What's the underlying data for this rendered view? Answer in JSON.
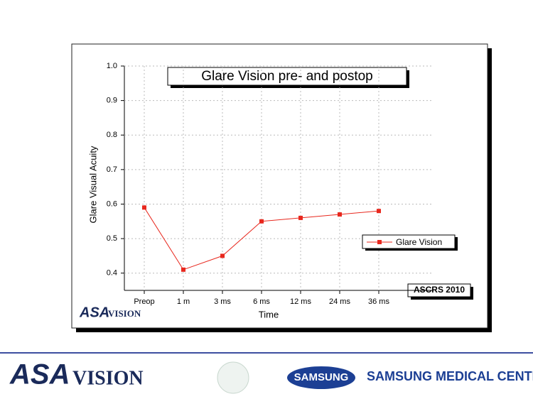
{
  "chart_data": {
    "type": "line",
    "title": "Glare Vision pre- and postop",
    "x_label": "Time",
    "y_label": "Glare Visual Acuity",
    "categories": [
      "Preop",
      "1 m",
      "3 ms",
      "6 ms",
      "12 ms",
      "24 ms",
      "36 ms"
    ],
    "series": [
      {
        "name": "Glare Vision",
        "color": "#e8281e",
        "values": [
          0.59,
          0.41,
          0.45,
          0.55,
          0.56,
          0.57,
          0.58
        ]
      }
    ],
    "ylim": [
      0.35,
      1.0
    ],
    "yticks": [
      0.4,
      0.5,
      0.6,
      0.7,
      0.8,
      0.9,
      {
        "value": 1,
        "label": "1.0"
      }
    ],
    "grid": true,
    "legend": "right",
    "annotation": "ASCRS 2010",
    "logo": {
      "brand": "ASA",
      "word": "VISION"
    }
  },
  "footer": {
    "logo": {
      "brand": "ASA",
      "word": "VISION"
    },
    "samsung": "SAMSUNG",
    "center": "SAMSUNG MEDICAL CENTER"
  }
}
